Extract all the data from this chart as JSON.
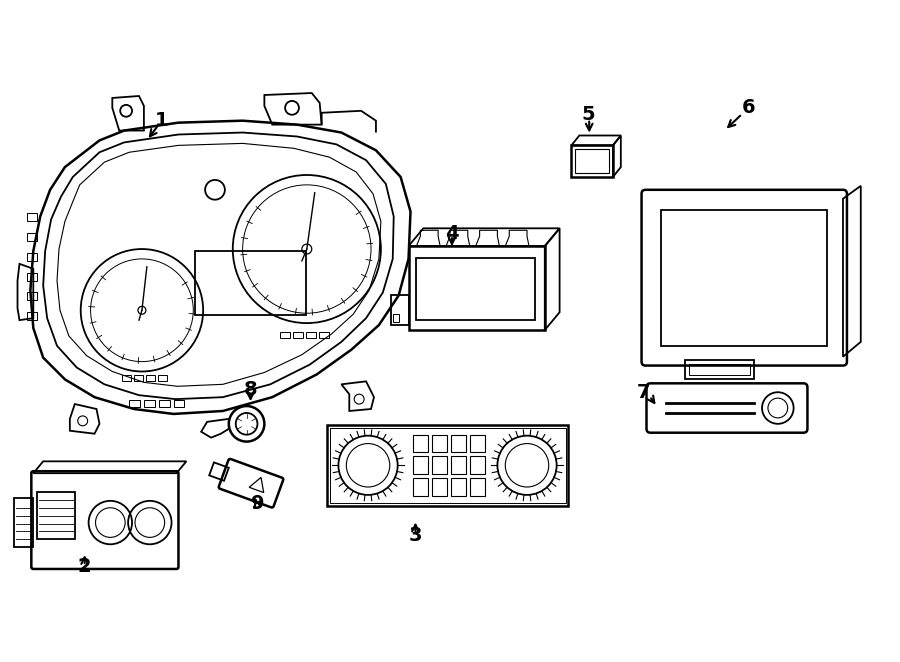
{
  "bg_color": "#ffffff",
  "line_color": "#000000",
  "lw": 1.3,
  "lw_heavy": 1.8
}
